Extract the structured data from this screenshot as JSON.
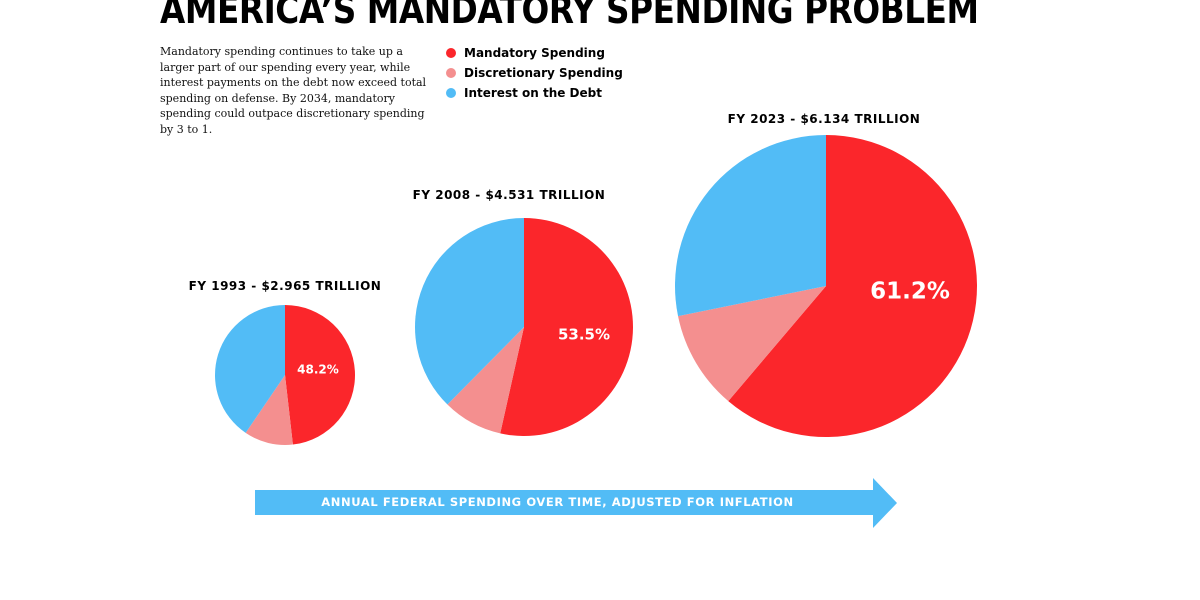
{
  "title": "AMERICA’S MANDATORY SPENDING PROBLEM",
  "description": "Mandatory spending continues to take up a larger part of our spending every year, while interest payments on the debt now exceed total spending on defense. By 2034, mandatory spending could outpace discretionary spending by 3 to 1.",
  "legend": [
    {
      "label": "Mandatory Spending",
      "color": "#fb262b"
    },
    {
      "label": "Discretionary Spending",
      "color": "#f48f8f"
    },
    {
      "label": "Interest on the Debt",
      "color": "#52bcf6"
    }
  ],
  "arrow_label": "ANNUAL FEDERAL SPENDING OVER TIME, ADJUSTED FOR INFLATION",
  "colors": {
    "mandatory": "#fb262b",
    "discretionary": "#f48f8f",
    "interest": "#52bcf6",
    "arrow": "#52bcf6"
  },
  "chart_data": [
    {
      "type": "pie",
      "title": "FY 1993 - $2.965 TRILLION",
      "total_trillion": 2.965,
      "labels": [
        "Mandatory Spending",
        "Discretionary Spending",
        "Interest on the Debt"
      ],
      "values": [
        48.2,
        11.3,
        40.5
      ],
      "data_labels": [
        "48.2%",
        "",
        ""
      ]
    },
    {
      "type": "pie",
      "title": "FY 2008 - $4.531 TRILLION",
      "total_trillion": 4.531,
      "labels": [
        "Mandatory Spending",
        "Discretionary Spending",
        "Interest on the Debt"
      ],
      "values": [
        53.5,
        8.9,
        37.6
      ],
      "data_labels": [
        "53.5%",
        "",
        ""
      ]
    },
    {
      "type": "pie",
      "title": "FY 2023 - $6.134 TRILLION",
      "total_trillion": 6.134,
      "labels": [
        "Mandatory Spending",
        "Discretionary Spending",
        "Interest on the Debt"
      ],
      "values": [
        61.2,
        10.6,
        28.2
      ],
      "data_labels": [
        "61.2%",
        "",
        ""
      ]
    }
  ]
}
